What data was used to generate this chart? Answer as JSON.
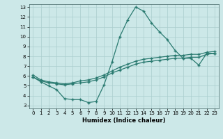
{
  "xlabel": "Humidex (Indice chaleur)",
  "xlim": [
    -0.5,
    23.5
  ],
  "ylim": [
    2.7,
    13.3
  ],
  "xticks": [
    0,
    1,
    2,
    3,
    4,
    5,
    6,
    7,
    8,
    9,
    10,
    11,
    12,
    13,
    14,
    15,
    16,
    17,
    18,
    19,
    20,
    21,
    22,
    23
  ],
  "yticks": [
    3,
    4,
    5,
    6,
    7,
    8,
    9,
    10,
    11,
    12,
    13
  ],
  "bg_color": "#cce8e8",
  "line_color": "#2a7a70",
  "grid_color": "#aacece",
  "line1_x": [
    0,
    1,
    2,
    3,
    4,
    5,
    6,
    7,
    8,
    9,
    10,
    11,
    12,
    13,
    14,
    15,
    16,
    17,
    18,
    19,
    20,
    21,
    22,
    23
  ],
  "line1_y": [
    5.9,
    5.4,
    5.0,
    4.6,
    3.7,
    3.6,
    3.6,
    3.3,
    3.4,
    5.1,
    7.4,
    10.0,
    11.7,
    13.0,
    12.6,
    11.4,
    10.5,
    9.7,
    8.6,
    7.8,
    7.8,
    7.1,
    8.3,
    8.3
  ],
  "line2_x": [
    0,
    1,
    2,
    3,
    4,
    5,
    6,
    7,
    8,
    9,
    10,
    11,
    12,
    13,
    14,
    15,
    16,
    17,
    18,
    19,
    20,
    21,
    22,
    23
  ],
  "line2_y": [
    5.9,
    5.5,
    5.3,
    5.2,
    5.1,
    5.2,
    5.3,
    5.4,
    5.6,
    5.9,
    6.3,
    6.6,
    6.9,
    7.2,
    7.4,
    7.5,
    7.6,
    7.7,
    7.8,
    7.8,
    7.9,
    7.9,
    8.2,
    8.3
  ],
  "line3_x": [
    0,
    1,
    2,
    3,
    4,
    5,
    6,
    7,
    8,
    9,
    10,
    11,
    12,
    13,
    14,
    15,
    16,
    17,
    18,
    19,
    20,
    21,
    22,
    23
  ],
  "line3_y": [
    6.1,
    5.6,
    5.4,
    5.3,
    5.2,
    5.3,
    5.5,
    5.6,
    5.8,
    6.1,
    6.5,
    6.9,
    7.2,
    7.5,
    7.7,
    7.8,
    7.9,
    8.0,
    8.1,
    8.1,
    8.2,
    8.2,
    8.4,
    8.5
  ]
}
